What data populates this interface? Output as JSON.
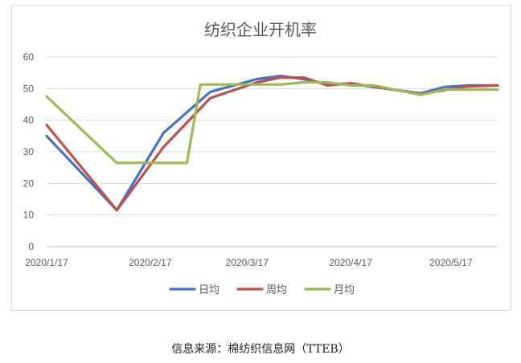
{
  "chart_data": {
    "type": "line",
    "title": "纺织企业开机率",
    "xlabel": "",
    "ylabel": "",
    "ylim": [
      0,
      60
    ],
    "yticks": [
      0,
      10,
      20,
      30,
      40,
      50,
      60
    ],
    "xticks": [
      "2020/1/17",
      "2020/2/17",
      "2020/3/17",
      "2020/4/17",
      "2020/5/17"
    ],
    "xlim": [
      "2020/1/17",
      "2020/5/31"
    ],
    "grid": true,
    "legend": "bottom",
    "series": [
      {
        "name": "日均",
        "color": "#4472c4",
        "points": [
          {
            "x": "2020/1/17",
            "y": 35
          },
          {
            "x": "2020/2/7",
            "y": 11.5
          },
          {
            "x": "2020/2/21",
            "y": 36
          },
          {
            "x": "2020/3/6",
            "y": 49
          },
          {
            "x": "2020/3/20",
            "y": 53
          },
          {
            "x": "2020/3/27",
            "y": 54
          },
          {
            "x": "2020/4/3",
            "y": 53
          },
          {
            "x": "2020/4/10",
            "y": 51.5
          },
          {
            "x": "2020/4/17",
            "y": 51.5
          },
          {
            "x": "2020/5/8",
            "y": 48.5
          },
          {
            "x": "2020/5/15",
            "y": 50.5
          },
          {
            "x": "2020/5/22",
            "y": 51
          },
          {
            "x": "2020/5/31",
            "y": 51
          }
        ]
      },
      {
        "name": "周均",
        "color": "#c0504d",
        "points": [
          {
            "x": "2020/1/17",
            "y": 38.5
          },
          {
            "x": "2020/2/7",
            "y": 11.5
          },
          {
            "x": "2020/2/21",
            "y": 31.5
          },
          {
            "x": "2020/3/6",
            "y": 47
          },
          {
            "x": "2020/3/20",
            "y": 52
          },
          {
            "x": "2020/3/27",
            "y": 53.5
          },
          {
            "x": "2020/4/3",
            "y": 53.5
          },
          {
            "x": "2020/4/10",
            "y": 51
          },
          {
            "x": "2020/4/17",
            "y": 51.7
          },
          {
            "x": "2020/5/8",
            "y": 48.3
          },
          {
            "x": "2020/5/15",
            "y": 49.5
          },
          {
            "x": "2020/5/22",
            "y": 50.7
          },
          {
            "x": "2020/5/31",
            "y": 51
          }
        ]
      },
      {
        "name": "月均",
        "color": "#9bbb59",
        "points": [
          {
            "x": "2020/1/17",
            "y": 47.5
          },
          {
            "x": "2020/2/7",
            "y": 26.5
          },
          {
            "x": "2020/2/28",
            "y": 26.5
          },
          {
            "x": "2020/3/3",
            "y": 51.3
          },
          {
            "x": "2020/3/27",
            "y": 51.3
          },
          {
            "x": "2020/4/3",
            "y": 52
          },
          {
            "x": "2020/4/10",
            "y": 52
          },
          {
            "x": "2020/4/17",
            "y": 51
          },
          {
            "x": "2020/4/24",
            "y": 51
          },
          {
            "x": "2020/5/8",
            "y": 48
          },
          {
            "x": "2020/5/15",
            "y": 49.7
          },
          {
            "x": "2020/5/31",
            "y": 49.7
          }
        ]
      }
    ]
  },
  "source_text": "信息来源：棉纺织信息网（TTEB）"
}
